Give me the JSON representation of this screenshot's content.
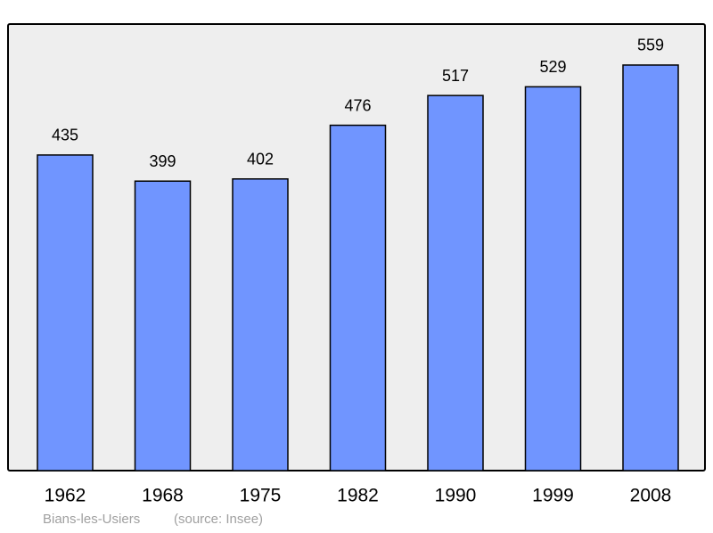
{
  "chart_data": {
    "type": "bar",
    "categories": [
      "1962",
      "1968",
      "1975",
      "1982",
      "1990",
      "1999",
      "2008"
    ],
    "values": [
      435,
      399,
      402,
      476,
      517,
      529,
      559
    ],
    "color": "#7095ff",
    "place": "Bians-les-Usiers",
    "source": "(source: Insee)"
  }
}
